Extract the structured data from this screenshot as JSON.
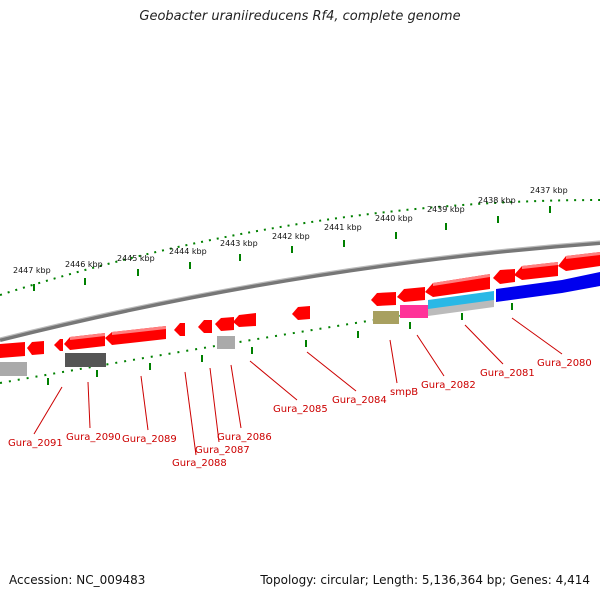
{
  "title": "Geobacter uraniireducens Rf4, complete genome",
  "footer": {
    "accession": "Accession: NC_009483",
    "summary": "Topology: circular; Length: 5,136,364 bp; Genes: 4,414"
  },
  "scale_labels": [
    "2447 kbp",
    "2446 kbp",
    "2445 kbp",
    "2444 kbp",
    "2443 kbp",
    "2442 kbp",
    "2441 kbp",
    "2440 kbp",
    "2439 kbp",
    "2438 kbp",
    "2437 kbp"
  ],
  "gene_labels": [
    "Gura_2091",
    "Gura_2090",
    "Gura_2089",
    "Gura_2088",
    "Gura_2087",
    "Gura_2086",
    "Gura_2085",
    "Gura_2084",
    "smpB",
    "Gura_2082",
    "Gura_2081",
    "Gura_2080"
  ],
  "colors": {
    "gene_red": "#ff0000",
    "backbone_grey": "#888888",
    "tick_green": "#008000",
    "label_red": "#cc0000",
    "cyan": "#29b8e6",
    "blue": "#0000ee",
    "magenta": "#ff3399",
    "olive": "#a8a060",
    "dark_grey": "#555555",
    "light_grey": "#aaaaaa"
  }
}
